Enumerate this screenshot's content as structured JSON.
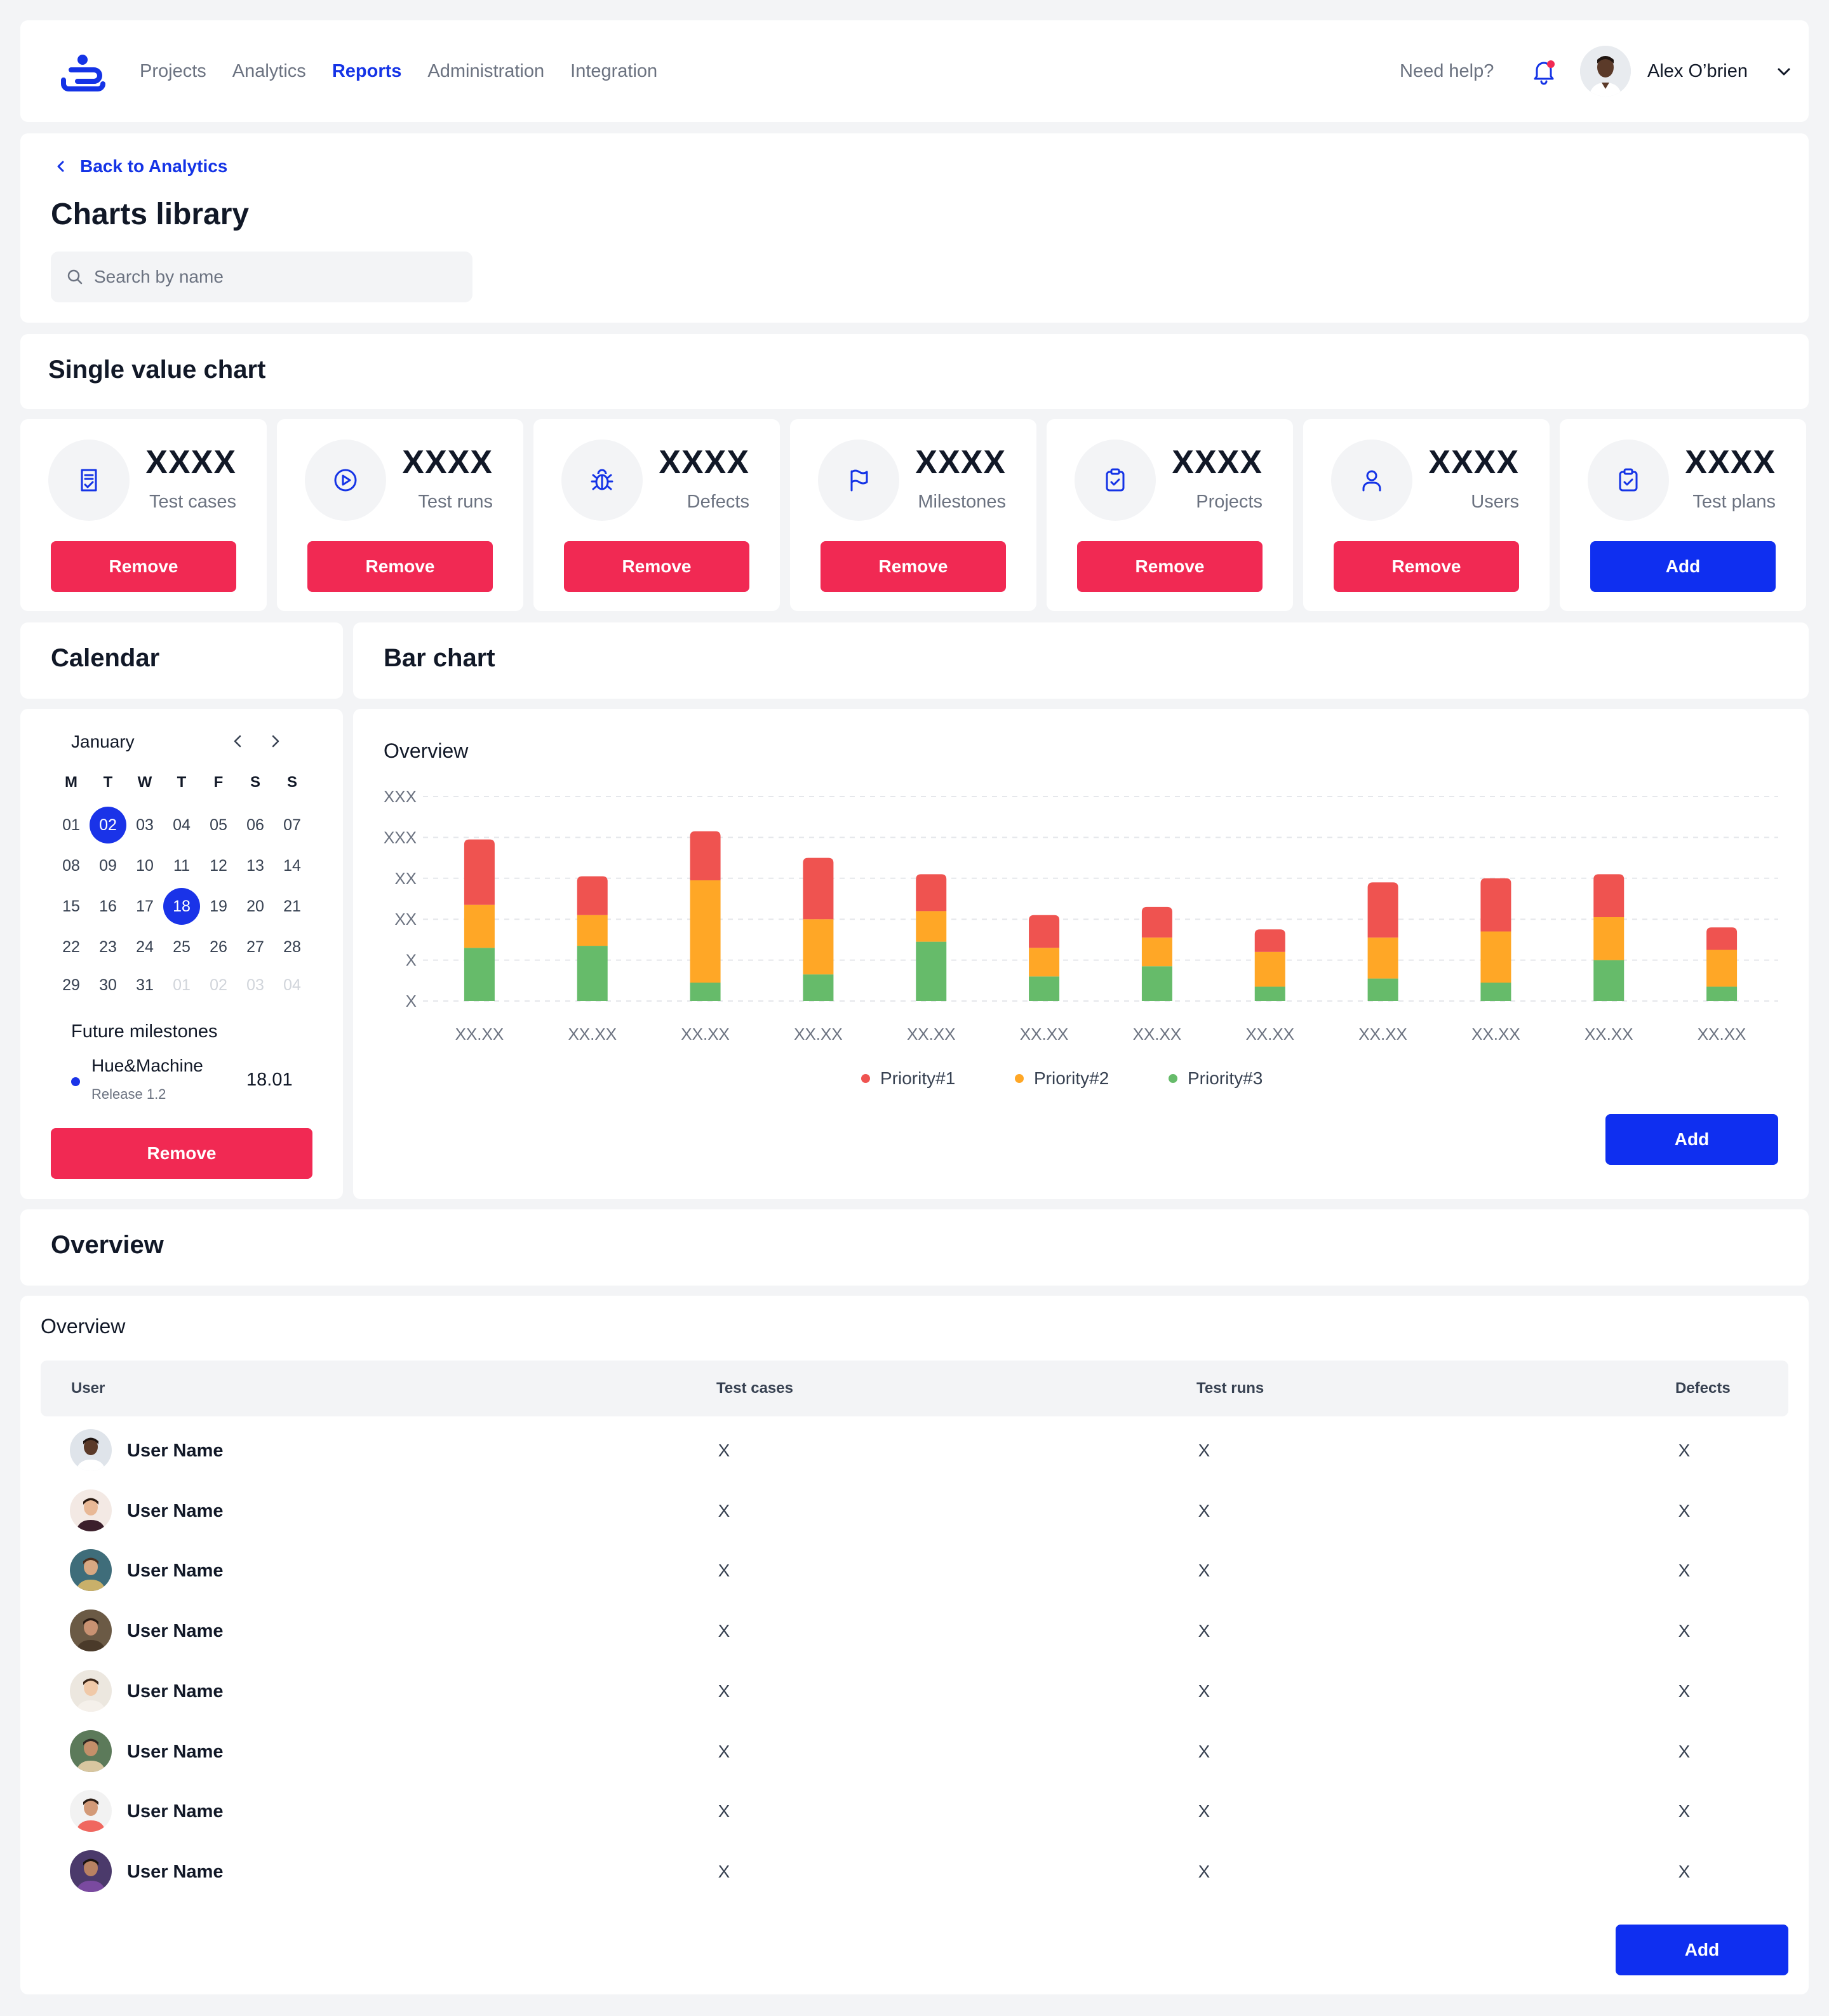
{
  "header": {
    "nav": [
      {
        "label": "Projects",
        "active": false
      },
      {
        "label": "Analytics",
        "active": false
      },
      {
        "label": "Reports",
        "active": true
      },
      {
        "label": "Administration",
        "active": false
      },
      {
        "label": "Integration",
        "active": false
      }
    ],
    "help": "Need help?",
    "user_name": "Alex O’brien",
    "accent_color": "#1433e6",
    "notification_dot_color": "#f12953"
  },
  "title_card": {
    "back_label": "Back to Analytics",
    "title": "Charts library",
    "search_placeholder": "Search by name"
  },
  "single_value": {
    "title": "Single value chart",
    "cards": [
      {
        "value": "XXXX",
        "label": "Test cases",
        "icon": "document-check-icon",
        "button": "Remove",
        "button_style": "red"
      },
      {
        "value": "XXXX",
        "label": "Test runs",
        "icon": "play-circle-icon",
        "button": "Remove",
        "button_style": "red"
      },
      {
        "value": "XXXX",
        "label": "Defects",
        "icon": "bug-icon",
        "button": "Remove",
        "button_style": "red"
      },
      {
        "value": "XXXX",
        "label": "Milestones",
        "icon": "flag-icon",
        "button": "Remove",
        "button_style": "red"
      },
      {
        "value": "XXXX",
        "label": "Projects",
        "icon": "clipboard-check-icon",
        "button": "Remove",
        "button_style": "red"
      },
      {
        "value": "XXXX",
        "label": "Users",
        "icon": "user-icon",
        "button": "Remove",
        "button_style": "red"
      },
      {
        "value": "XXXX",
        "label": "Test plans",
        "icon": "clipboard-check-icon",
        "button": "Add",
        "button_style": "blue"
      }
    ]
  },
  "calendar": {
    "title": "Calendar",
    "month": "January",
    "weekdays": [
      "M",
      "T",
      "W",
      "T",
      "F",
      "S",
      "S"
    ],
    "weeks": [
      [
        "01",
        "02",
        "03",
        "04",
        "05",
        "06",
        "07"
      ],
      [
        "08",
        "09",
        "10",
        "11",
        "12",
        "13",
        "14"
      ],
      [
        "15",
        "16",
        "17",
        "18",
        "19",
        "20",
        "21"
      ],
      [
        "22",
        "23",
        "24",
        "25",
        "26",
        "27",
        "28"
      ],
      [
        "29",
        "30",
        "31",
        "01",
        "02",
        "03",
        "04"
      ]
    ],
    "selected_days": [
      "02",
      "18"
    ],
    "next_month_days_in_last_week": 4,
    "milestones_title": "Future milestones",
    "milestone": {
      "name": "Hue&Machine",
      "release": "Release 1.2",
      "date": "18.01"
    },
    "button": "Remove"
  },
  "bar_chart": {
    "title": "Bar chart",
    "subtitle": "Overview",
    "button": "Add"
  },
  "chart_data": {
    "type": "bar",
    "stacked": true,
    "title": "Overview",
    "y_tick_labels": [
      "XXX",
      "XXX",
      "XX",
      "XX",
      "X",
      "X"
    ],
    "categories": [
      "XX.XX",
      "XX.XX",
      "XX.XX",
      "XX.XX",
      "XX.XX",
      "XX.XX",
      "XX.XX",
      "XX.XX",
      "XX.XX",
      "XX.XX",
      "XX.XX",
      "XX.XX"
    ],
    "ylim": [
      0,
      5
    ],
    "series": [
      {
        "name": "Priority#3",
        "color": "#66bb6a",
        "values": [
          1.3,
          1.35,
          0.45,
          0.65,
          1.45,
          0.6,
          0.85,
          0.35,
          0.55,
          0.45,
          1.0,
          0.35
        ]
      },
      {
        "name": "Priority#2",
        "color": "#ffa726",
        "values": [
          1.05,
          0.75,
          2.5,
          1.35,
          0.75,
          0.7,
          0.7,
          0.85,
          1.0,
          1.25,
          1.05,
          0.9
        ]
      },
      {
        "name": "Priority#1",
        "color": "#ef5350",
        "values": [
          1.6,
          0.95,
          1.2,
          1.5,
          0.9,
          0.8,
          0.75,
          0.55,
          1.35,
          1.3,
          1.05,
          0.55
        ]
      }
    ],
    "grid": true,
    "legend_position": "bottom-center"
  },
  "overview": {
    "title": "Overview",
    "subtitle": "Overview",
    "columns": [
      "User",
      "Test cases",
      "Test runs",
      "Defects"
    ],
    "rows": [
      {
        "user": "User Name",
        "test_cases": "X",
        "test_runs": "X",
        "defects": "X"
      },
      {
        "user": "User Name",
        "test_cases": "X",
        "test_runs": "X",
        "defects": "X"
      },
      {
        "user": "User Name",
        "test_cases": "X",
        "test_runs": "X",
        "defects": "X"
      },
      {
        "user": "User Name",
        "test_cases": "X",
        "test_runs": "X",
        "defects": "X"
      },
      {
        "user": "User Name",
        "test_cases": "X",
        "test_runs": "X",
        "defects": "X"
      },
      {
        "user": "User Name",
        "test_cases": "X",
        "test_runs": "X",
        "defects": "X"
      },
      {
        "user": "User Name",
        "test_cases": "X",
        "test_runs": "X",
        "defects": "X"
      },
      {
        "user": "User Name",
        "test_cases": "X",
        "test_runs": "X",
        "defects": "X"
      }
    ],
    "button": "Add"
  }
}
